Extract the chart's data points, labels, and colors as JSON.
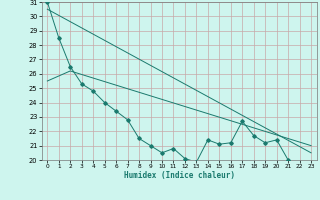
{
  "xlabel": "Humidex (Indice chaleur)",
  "background_color": "#cef5ee",
  "grid_color": "#c8a8a8",
  "line_color": "#1a7a6e",
  "xlim": [
    -0.5,
    23.5
  ],
  "ylim": [
    20,
    31
  ],
  "yticks": [
    20,
    21,
    22,
    23,
    24,
    25,
    26,
    27,
    28,
    29,
    30,
    31
  ],
  "xticks": [
    0,
    1,
    2,
    3,
    4,
    5,
    6,
    7,
    8,
    9,
    10,
    11,
    12,
    13,
    14,
    15,
    16,
    17,
    18,
    19,
    20,
    21,
    22,
    23
  ],
  "line1_x": [
    0,
    1,
    2,
    3,
    4,
    5,
    6,
    7,
    8,
    9,
    10,
    11,
    12,
    13,
    14,
    15,
    16,
    17,
    18,
    19,
    20,
    21,
    22,
    23
  ],
  "line1_y": [
    31.0,
    28.5,
    26.5,
    25.3,
    24.8,
    24.0,
    23.4,
    22.8,
    21.5,
    21.0,
    20.5,
    20.8,
    20.1,
    19.85,
    21.4,
    21.1,
    21.2,
    22.7,
    21.7,
    21.2,
    21.4,
    20.0,
    19.8,
    19.8
  ],
  "line2_x": [
    0,
    23
  ],
  "line2_y": [
    30.5,
    20.5
  ],
  "line3_x": [
    0,
    2,
    23
  ],
  "line3_y": [
    25.5,
    26.2,
    21.0
  ]
}
